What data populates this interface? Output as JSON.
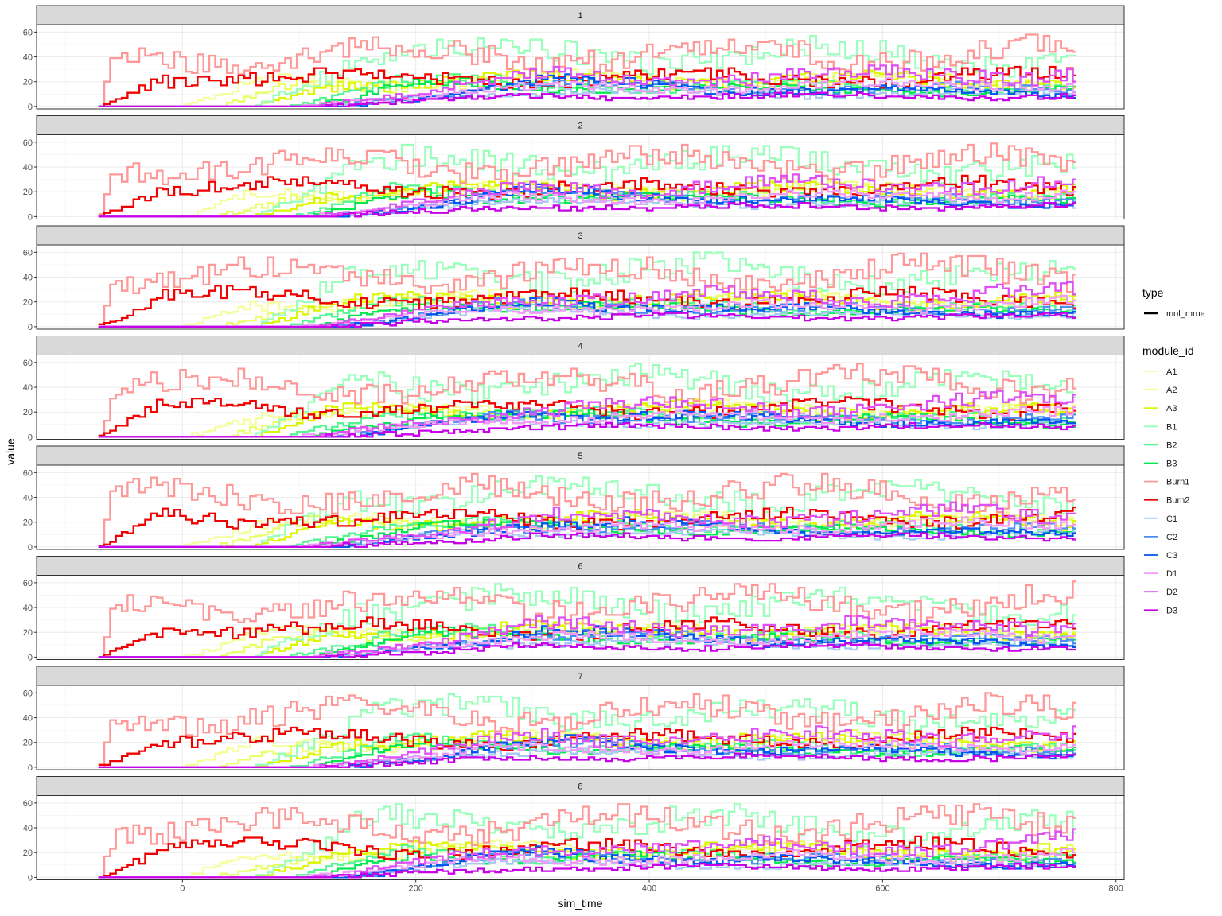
{
  "chart_data": {
    "type": "line",
    "style": "step",
    "facet_by": "replicate",
    "panels": [
      "1",
      "2",
      "3",
      "4",
      "5",
      "6",
      "7",
      "8"
    ],
    "xlabel": "sim_time",
    "ylabel": "value",
    "xlim": [
      -125,
      807
    ],
    "ylim": [
      -2,
      66
    ],
    "x_ticks": [
      0,
      200,
      400,
      600,
      800
    ],
    "y_ticks": [
      0,
      20,
      40,
      60
    ],
    "grid": true,
    "x_range_data": [
      -72,
      766
    ],
    "step_width": 5,
    "legend_type": {
      "title": "type",
      "entries": [
        "mol_mrna"
      ]
    },
    "legend_module": {
      "title": "module_id",
      "entries": [
        "A1",
        "A2",
        "A3",
        "B1",
        "B2",
        "B3",
        "Burn1",
        "Burn2",
        "C1",
        "C2",
        "C3",
        "D1",
        "D2",
        "D3"
      ]
    },
    "series": [
      {
        "name": "A1",
        "color": "#F5FF99",
        "start": 2,
        "profile": [
          [
            2,
            0
          ],
          [
            60,
            18
          ],
          [
            300,
            22
          ],
          [
            766,
            20
          ]
        ]
      },
      {
        "name": "A2",
        "color": "#E9FF66",
        "start": 30,
        "profile": [
          [
            30,
            0
          ],
          [
            100,
            18
          ],
          [
            400,
            22
          ],
          [
            766,
            20
          ]
        ]
      },
      {
        "name": "A3",
        "color": "#DDF500",
        "start": 60,
        "profile": [
          [
            60,
            0
          ],
          [
            130,
            20
          ],
          [
            400,
            22
          ],
          [
            766,
            20
          ]
        ]
      },
      {
        "name": "B1",
        "color": "#99FFBB",
        "start": 60,
        "profile": [
          [
            60,
            0
          ],
          [
            150,
            42
          ],
          [
            400,
            44
          ],
          [
            766,
            38
          ]
        ]
      },
      {
        "name": "B2",
        "color": "#55F592",
        "start": 90,
        "profile": [
          [
            90,
            0
          ],
          [
            180,
            20
          ],
          [
            450,
            16
          ],
          [
            766,
            14
          ]
        ]
      },
      {
        "name": "B3",
        "color": "#00E84D",
        "start": 110,
        "profile": [
          [
            110,
            0
          ],
          [
            200,
            18
          ],
          [
            450,
            14
          ],
          [
            766,
            12
          ]
        ]
      },
      {
        "name": "Burn1",
        "color": "#FF9999",
        "start": -72,
        "profile": [
          [
            -72,
            0
          ],
          [
            -60,
            40
          ],
          [
            200,
            42
          ],
          [
            766,
            44
          ]
        ]
      },
      {
        "name": "Burn2",
        "color": "#F00000",
        "start": -72,
        "profile": [
          [
            -72,
            0
          ],
          [
            -20,
            24
          ],
          [
            300,
            22
          ],
          [
            766,
            24
          ]
        ]
      },
      {
        "name": "C1",
        "color": "#A7C8F2",
        "start": 120,
        "profile": [
          [
            120,
            0
          ],
          [
            250,
            12
          ],
          [
            500,
            10
          ],
          [
            766,
            10
          ]
        ]
      },
      {
        "name": "C2",
        "color": "#4D8FF0",
        "start": 130,
        "profile": [
          [
            130,
            0
          ],
          [
            280,
            18
          ],
          [
            500,
            14
          ],
          [
            766,
            14
          ]
        ]
      },
      {
        "name": "C3",
        "color": "#0055EE",
        "start": 140,
        "profile": [
          [
            140,
            0
          ],
          [
            300,
            20
          ],
          [
            500,
            14
          ],
          [
            766,
            10
          ]
        ]
      },
      {
        "name": "D1",
        "color": "#F09CF7",
        "start": 100,
        "profile": [
          [
            100,
            0
          ],
          [
            260,
            14
          ],
          [
            500,
            16
          ],
          [
            766,
            18
          ]
        ]
      },
      {
        "name": "D2",
        "color": "#DE50F5",
        "start": 110,
        "profile": [
          [
            110,
            0
          ],
          [
            300,
            24
          ],
          [
            550,
            24
          ],
          [
            766,
            28
          ]
        ]
      },
      {
        "name": "D3",
        "color": "#C800E8",
        "start": 120,
        "profile": [
          [
            120,
            0
          ],
          [
            300,
            8
          ],
          [
            550,
            8
          ],
          [
            766,
            8
          ]
        ]
      }
    ]
  }
}
